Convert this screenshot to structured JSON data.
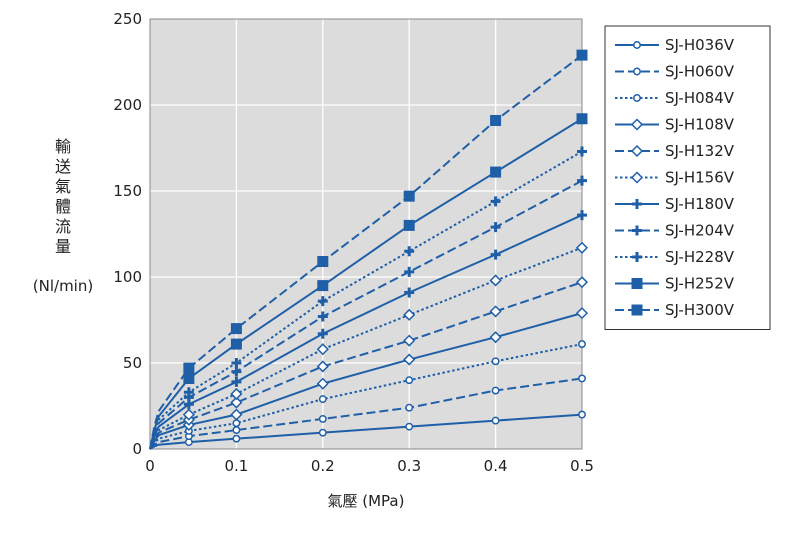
{
  "chart_data": {
    "type": "line",
    "ylabel_chars": [
      "輸",
      "送",
      "氣",
      "體",
      "流",
      "量"
    ],
    "ylabel_unit": "(Nl/min)",
    "xlabel": "氣壓 (MPa)",
    "xlim": [
      0,
      0.5
    ],
    "ylim": [
      0,
      250
    ],
    "xticks": [
      {
        "value": 0,
        "label": "0"
      },
      {
        "value": 0.1,
        "label": "0.1"
      },
      {
        "value": 0.2,
        "label": "0.2"
      },
      {
        "value": 0.3,
        "label": "0.3"
      },
      {
        "value": 0.4,
        "label": "0.4"
      },
      {
        "value": 0.5,
        "label": "0.5"
      }
    ],
    "yticks": [
      {
        "value": 0,
        "label": "0"
      },
      {
        "value": 50,
        "label": "50"
      },
      {
        "value": 100,
        "label": "100"
      },
      {
        "value": 150,
        "label": "150"
      },
      {
        "value": 200,
        "label": "200"
      },
      {
        "value": 250,
        "label": "250"
      }
    ],
    "grid": true,
    "legend_position": "right",
    "colors": {
      "line": "#1f5fa8",
      "plot_bg": "#dcdcdc",
      "grid": "#ffffff",
      "marker_fill": "#ffffff"
    },
    "x": [
      0,
      0.005,
      0.01,
      0.045,
      0.1,
      0.2,
      0.3,
      0.4,
      0.5
    ],
    "series": [
      {
        "name": "SJ-H036V",
        "dash": "solid",
        "marker": "circle",
        "filled": false,
        "values": [
          0,
          1.5,
          2.5,
          4,
          6,
          9.5,
          13,
          16.5,
          20
        ]
      },
      {
        "name": "SJ-H060V",
        "dash": "dashed",
        "marker": "circle",
        "filled": false,
        "values": [
          0,
          2.5,
          4,
          7.5,
          11,
          17.5,
          24,
          34,
          41
        ]
      },
      {
        "name": "SJ-H084V",
        "dash": "dotted",
        "marker": "circle",
        "filled": false,
        "values": [
          0,
          3.5,
          6,
          10.5,
          15,
          29,
          40,
          51,
          61
        ]
      },
      {
        "name": "SJ-H108V",
        "dash": "solid",
        "marker": "diamond",
        "filled": false,
        "values": [
          0,
          4.5,
          8,
          14,
          20,
          38,
          52,
          65,
          79
        ]
      },
      {
        "name": "SJ-H132V",
        "dash": "dashed",
        "marker": "diamond",
        "filled": false,
        "values": [
          0,
          5.5,
          9.5,
          17,
          27,
          48,
          63,
          80,
          97
        ]
      },
      {
        "name": "SJ-H156V",
        "dash": "dotted",
        "marker": "diamond",
        "filled": false,
        "values": [
          0,
          6.5,
          11,
          20,
          32,
          58,
          78,
          98,
          117
        ]
      },
      {
        "name": "SJ-H180V",
        "dash": "solid",
        "marker": "plus",
        "filled": true,
        "values": [
          0,
          7.5,
          13,
          26,
          39,
          67,
          91,
          113,
          136
        ]
      },
      {
        "name": "SJ-H204V",
        "dash": "dashed",
        "marker": "plus",
        "filled": true,
        "values": [
          0,
          8.5,
          15,
          30,
          45,
          77,
          103,
          129,
          156
        ]
      },
      {
        "name": "SJ-H228V",
        "dash": "dotted",
        "marker": "plus",
        "filled": true,
        "values": [
          0,
          9.5,
          17,
          33,
          50,
          86,
          115,
          144,
          173
        ]
      },
      {
        "name": "SJ-H252V",
        "dash": "solid",
        "marker": "square",
        "filled": true,
        "values": [
          0,
          11,
          19,
          41,
          61,
          95,
          130,
          161,
          192
        ]
      },
      {
        "name": "SJ-H300V",
        "dash": "dashed",
        "marker": "square",
        "filled": true,
        "values": [
          0,
          13,
          22,
          47,
          70,
          109,
          147,
          191,
          229
        ]
      }
    ]
  }
}
